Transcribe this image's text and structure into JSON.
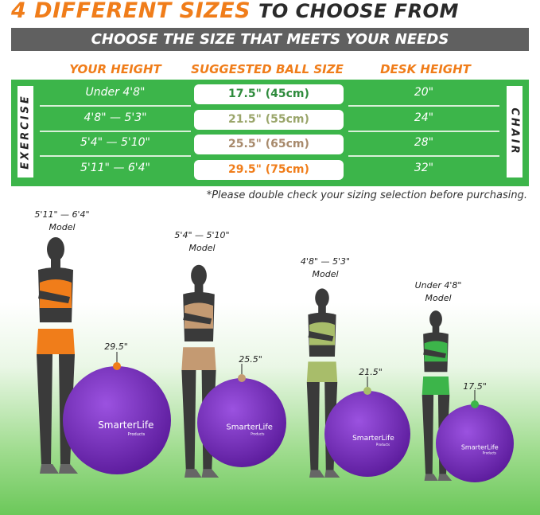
{
  "title": {
    "highlight": "4 DIFFERENT SIZES",
    "rest": "TO CHOOSE FROM"
  },
  "subtitle": "CHOOSE THE SIZE THAT MEETS YOUR NEEDS",
  "table": {
    "headers": [
      "YOUR HEIGHT",
      "SUGGESTED BALL SIZE",
      "DESK HEIGHT"
    ],
    "left_label": "EXERCISE",
    "right_label": "CHAIR",
    "rows": [
      {
        "height": "Under 4'8\"",
        "ball": "17.5\" (45cm)",
        "desk": "20\"",
        "color": "#2e8b3c"
      },
      {
        "height": "4'8\" — 5'3\"",
        "ball": "21.5\" (55cm)",
        "desk": "24\"",
        "color": "#9aa56a"
      },
      {
        "height": "5'4\" — 5'10\"",
        "ball": "25.5\" (65cm)",
        "desk": "28\"",
        "color": "#a88a6c"
      },
      {
        "height": "5'11\" — 6'4\"",
        "ball": "29.5\" (75cm)",
        "desk": "32\"",
        "color": "#f07d1a"
      }
    ]
  },
  "note": "*Please double check your sizing selection before purchasing.",
  "models": [
    {
      "height": "5'11\" — 6'4\"",
      "label": "Model",
      "ball": "29.5\"",
      "color": "#f07d1a"
    },
    {
      "height": "5'4\" — 5'10\"",
      "label": "Model",
      "ball": "25.5\"",
      "color": "#c49a72"
    },
    {
      "height": "4'8\" — 5'3\"",
      "label": "Model",
      "ball": "21.5\"",
      "color": "#a8bd6a"
    },
    {
      "height": "Under 4'8\"",
      "label": "Model",
      "ball": "17.5\"",
      "color": "#3cb54a"
    }
  ],
  "brand": {
    "name": "SmarterLife",
    "sub": "Products"
  },
  "ball_color": "#7a2fc0"
}
